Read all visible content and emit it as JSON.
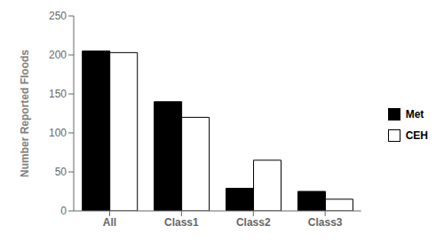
{
  "chart_data": {
    "type": "bar",
    "categories": [
      "All",
      "Class1",
      "Class2",
      "Class3"
    ],
    "series": [
      {
        "name": "Met",
        "color": "#000000",
        "values": [
          205,
          140,
          29,
          25
        ]
      },
      {
        "name": "CEH",
        "color": "#ffffff",
        "values": [
          203,
          120,
          65,
          15
        ]
      }
    ],
    "ylabel": "Number Reported Floods",
    "ylim": [
      0,
      250
    ],
    "yticks": [
      0,
      50,
      100,
      150,
      200,
      250
    ],
    "grid": false,
    "legend": "right"
  }
}
